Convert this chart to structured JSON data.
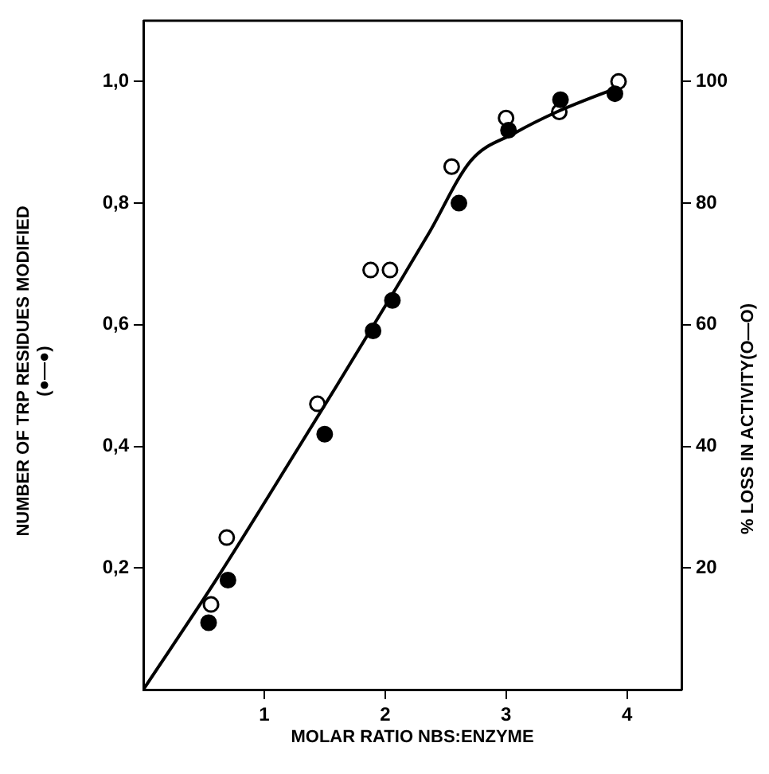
{
  "chart_data": {
    "type": "scatter",
    "xlabel": "MOLAR RATIO NBS:ENZYME",
    "ylabel": "NUMBER OF TRP RESIDUES MODIFIED\n(●—●)",
    "y2label": "% LOSS IN ACTIVITY(O—O)",
    "xlim": [
      0,
      4.45
    ],
    "xticks": [
      1,
      2,
      3,
      4
    ],
    "ylim": [
      0,
      1.1
    ],
    "yticks": [
      {
        "value": 0.2,
        "label": "0,2"
      },
      {
        "value": 0.4,
        "label": "0,4"
      },
      {
        "value": 0.6,
        "label": "0,6"
      },
      {
        "value": 0.8,
        "label": "0,8"
      },
      {
        "value": 1.0,
        "label": "1,0"
      }
    ],
    "y2lim": [
      0,
      110
    ],
    "y2ticks": [
      20,
      40,
      60,
      80,
      100
    ],
    "grid": false,
    "legend": false,
    "series": [
      {
        "type": "line",
        "marker": "none",
        "color": "#000000",
        "x": [
          0,
          0.6,
          1.29,
          1.6,
          2.09,
          2.36,
          2.71,
          3.07,
          3.42,
          3.92
        ],
        "values": [
          0,
          0.18,
          0.4,
          0.5,
          0.66,
          0.75,
          0.87,
          0.915,
          0.95,
          0.99
        ]
      },
      {
        "type": "scatter",
        "marker": "circle",
        "color": "#000000",
        "x": [
          0.54,
          0.7,
          1.5,
          1.9,
          2.06,
          2.61,
          3.02,
          3.45,
          3.9
        ],
        "values": [
          0.11,
          0.18,
          0.42,
          0.59,
          0.64,
          0.8,
          0.92,
          0.97,
          0.98
        ]
      },
      {
        "type": "scatter",
        "marker": "circle",
        "color": "#ffffff",
        "axis": "y2",
        "x": [
          0.56,
          0.69,
          1.44,
          1.88,
          2.04,
          2.55,
          3.0,
          3.44,
          3.93
        ],
        "values": [
          14,
          25,
          47,
          69,
          69,
          86,
          94,
          95,
          100
        ]
      }
    ]
  }
}
